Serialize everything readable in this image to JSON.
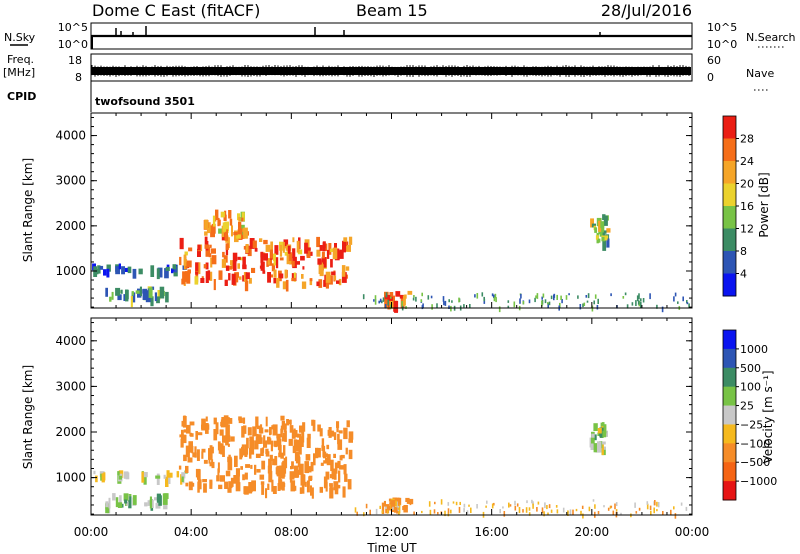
{
  "header": {
    "radar": "Dome C East (fitACF)",
    "beam": "Beam 15",
    "date": "28/Jul/2016"
  },
  "strips": {
    "nsky": {
      "label": "N.Sky",
      "top_tick": "10^5",
      "bottom_tick": "10^0"
    },
    "nsearch": {
      "label": "N.Search",
      "top_tick": "10^5",
      "bottom_tick": "10^0"
    },
    "freq": {
      "label_line1": "Freq.",
      "label_line2": "[MHz]",
      "top_tick": "18",
      "bottom_tick": "8"
    },
    "nave": {
      "label": "Nave",
      "top_tick": "60",
      "bottom_tick": "0"
    },
    "cpid": {
      "label": "CPID",
      "program": "twofsound 3501"
    }
  },
  "chart_data": [
    {
      "type": "heatmap",
      "quantity": "Power",
      "ylabel": "Slant Range [km]",
      "ylim": [
        180,
        4500
      ],
      "yticks": [
        "1000",
        "2000",
        "3000",
        "4000"
      ],
      "xlabel": "Time UT",
      "xticks": [
        "00:00",
        "04:00",
        "08:00",
        "12:00",
        "16:00",
        "20:00",
        "00:00"
      ],
      "colorbar": {
        "label": "Power [dB]",
        "ticks": [
          "4",
          "8",
          "12",
          "16",
          "20",
          "24",
          "28"
        ],
        "colors": [
          "#0a14f0",
          "#2d55b4",
          "#3c8c64",
          "#78c346",
          "#ebd22d",
          "#f5a528",
          "#f56e19",
          "#eb1e14"
        ]
      },
      "echo_regions": [
        {
          "time_h": [
            0.0,
            3.8
          ],
          "range_km": [
            950,
            1100
          ],
          "value": 6
        },
        {
          "time_h": [
            0.5,
            3.0
          ],
          "range_km": [
            350,
            600
          ],
          "value": 12
        },
        {
          "time_h": [
            3.5,
            10.3
          ],
          "range_km": [
            700,
            1700
          ],
          "value": 26
        },
        {
          "time_h": [
            4.5,
            6.3
          ],
          "range_km": [
            1700,
            2300
          ],
          "value": 22
        },
        {
          "time_h": [
            11.6,
            12.7
          ],
          "range_km": [
            250,
            500
          ],
          "value": 28
        },
        {
          "time_h": [
            19.9,
            20.6
          ],
          "range_km": [
            1600,
            2200
          ],
          "value": 14
        }
      ]
    },
    {
      "type": "heatmap",
      "quantity": "Velocity",
      "ylabel": "Slant Range [km]",
      "ylim": [
        180,
        4500
      ],
      "yticks": [
        "1000",
        "2000",
        "3000",
        "4000"
      ],
      "xlabel": "Time UT",
      "xticks": [
        "00:00",
        "04:00",
        "08:00",
        "12:00",
        "16:00",
        "20:00",
        "00:00"
      ],
      "colorbar": {
        "label": "Velocity [m s⁻¹]",
        "ticks": [
          "1000",
          "500",
          "100",
          "25",
          "−25",
          "−100",
          "−500",
          "−1000"
        ],
        "colors": [
          "#0a14f0",
          "#2d55b4",
          "#3c8c64",
          "#78c346",
          "#c8c8c8",
          "#f5b91e",
          "#f58c28",
          "#f56414",
          "#e61414"
        ]
      },
      "echo_regions": [
        {
          "time_h": [
            0.0,
            3.8
          ],
          "range_km": [
            950,
            1100
          ],
          "value": 0
        },
        {
          "time_h": [
            0.5,
            3.0
          ],
          "range_km": [
            350,
            600
          ],
          "value": 60
        },
        {
          "time_h": [
            3.5,
            10.3
          ],
          "range_km": [
            700,
            2300
          ],
          "value": -300
        },
        {
          "time_h": [
            11.6,
            12.7
          ],
          "range_km": [
            250,
            500
          ],
          "value": -150
        },
        {
          "time_h": [
            19.9,
            20.6
          ],
          "range_km": [
            1600,
            2200
          ],
          "value": 30
        }
      ]
    }
  ]
}
